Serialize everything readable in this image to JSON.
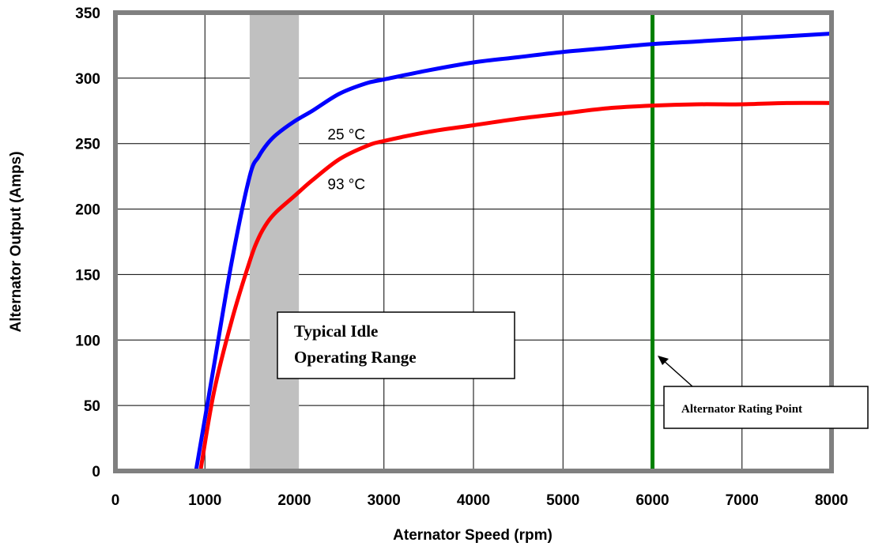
{
  "chart_data": {
    "type": "line",
    "xlabel": "Aternator Speed (rpm)",
    "ylabel": "Alternator Output (Amps)",
    "xlim": [
      0,
      8000
    ],
    "ylim": [
      0,
      350
    ],
    "xticks": [
      "0",
      "1000",
      "2000",
      "3000",
      "4000",
      "5000",
      "6000",
      "7000",
      "8000"
    ],
    "yticks": [
      "0",
      "50",
      "100",
      "150",
      "200",
      "250",
      "300",
      "350"
    ],
    "grid": true,
    "series": [
      {
        "name": "25 °C",
        "color": "#0000ff",
        "x": [
          900,
          1100,
          1300,
          1500,
          1600,
          1700,
          1800,
          2000,
          2200,
          2500,
          2800,
          3000,
          3500,
          4000,
          4500,
          5000,
          5500,
          6000,
          6500,
          7000,
          7500,
          8000
        ],
        "y": [
          0,
          80,
          160,
          225,
          240,
          250,
          257,
          267,
          275,
          288,
          296,
          299,
          306,
          312,
          316,
          320,
          323,
          326,
          328,
          330,
          332,
          334
        ]
      },
      {
        "name": "93 °C",
        "color": "#ff0000",
        "x": [
          950,
          1100,
          1300,
          1500,
          1600,
          1700,
          1800,
          2000,
          2200,
          2500,
          2800,
          3000,
          3500,
          4000,
          4500,
          5000,
          5500,
          6000,
          6500,
          7000,
          7500,
          8000
        ],
        "y": [
          0,
          60,
          115,
          160,
          178,
          190,
          198,
          210,
          222,
          238,
          248,
          252,
          259,
          264,
          269,
          273,
          277,
          279,
          280,
          280,
          281,
          281
        ]
      }
    ],
    "shaded_range": {
      "x": [
        1500,
        2050
      ],
      "color": "#c0c0c0"
    },
    "vertical_line": {
      "x": 6000,
      "color": "#008000"
    },
    "annotations": {
      "idle_line1": "Typical Idle",
      "idle_line2": "Operating Range",
      "rating": "Alternator Rating Point"
    }
  }
}
